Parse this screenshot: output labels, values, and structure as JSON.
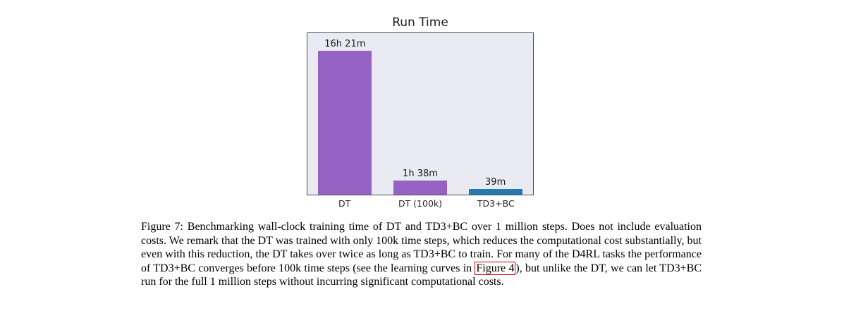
{
  "chart_data": {
    "type": "bar",
    "title": "Run Time",
    "categories": [
      "DT",
      "DT (100k)",
      "TD3+BC"
    ],
    "values": [
      981,
      98,
      39
    ],
    "unit": "minutes",
    "value_labels": [
      "16h 21m",
      "1h 38m",
      "39m"
    ],
    "bar_colors": [
      "#9663c4",
      "#9663c4",
      "#2679b2"
    ],
    "xlabel": "",
    "ylabel": "",
    "ylim": [
      0,
      1100
    ],
    "grid": false,
    "legend": "none",
    "plot_background": "#eaebf2"
  },
  "caption": {
    "text_before_link": "Figure 7: Benchmarking wall-clock training time of DT and TD3+BC over 1 million steps. Does not include evaluation costs. We remark that the DT was trained with only 100k time steps, which reduces the computational cost substantially, but even with this reduction, the DT takes over twice as long as TD3+BC to train. For many of the D4RL tasks the performance of TD3+BC converges before 100k time steps (see the learning curves in ",
    "link_text": "Figure 4",
    "text_after_link": "), but unlike the DT, we can let TD3+BC run for the full 1 million steps without incurring significant computational costs.",
    "link_color": "#cc0000"
  }
}
